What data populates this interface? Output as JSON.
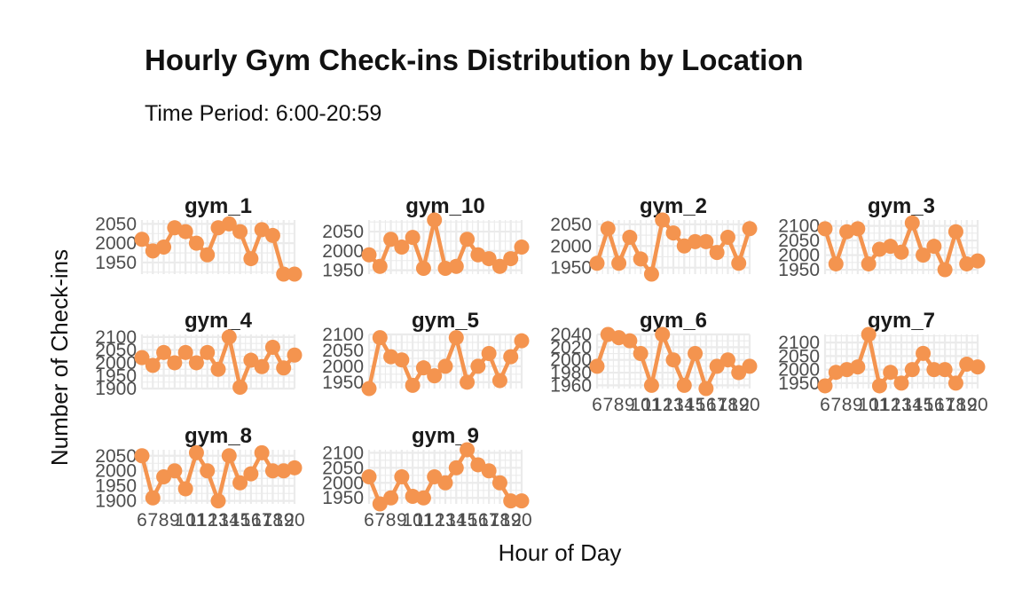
{
  "chart_data": {
    "type": "line",
    "title": "Hourly Gym Check-ins Distribution by Location",
    "subtitle": "Time Period: 6:00-20:59",
    "xlabel": "Hour of Day",
    "ylabel": "Number of Check-ins",
    "x": [
      6,
      7,
      8,
      9,
      10,
      11,
      12,
      13,
      14,
      15,
      16,
      17,
      18,
      19,
      20
    ],
    "xlim": [
      6,
      20
    ],
    "x_tick_labels": [
      "6",
      "7",
      "8",
      "9",
      "10",
      "11",
      "12",
      "13",
      "14",
      "15",
      "16",
      "17",
      "18",
      "19",
      "20"
    ],
    "line_color": "#F4944F",
    "grid": true,
    "layout": "facet grid, 4 columns, 3 rows",
    "panels": [
      {
        "label": "gym_1",
        "ylim": [
          1920,
          2060
        ],
        "yticks": [
          1950,
          2000,
          2050
        ],
        "values": [
          2010,
          1980,
          1990,
          2040,
          2030,
          2000,
          1970,
          2040,
          2050,
          2030,
          1960,
          2035,
          2020,
          1920,
          1920
        ]
      },
      {
        "label": "gym_10",
        "ylim": [
          1940,
          2080
        ],
        "yticks": [
          1950,
          2000,
          2050
        ],
        "values": [
          1990,
          1960,
          2030,
          2010,
          2035,
          1955,
          2080,
          1955,
          1960,
          2030,
          1990,
          1980,
          1960,
          1980,
          2010
        ]
      },
      {
        "label": "gym_2",
        "ylim": [
          1935,
          2060
        ],
        "yticks": [
          1950,
          2000,
          2050
        ],
        "values": [
          1960,
          2040,
          1960,
          2020,
          1970,
          1935,
          2060,
          2030,
          2000,
          2010,
          2010,
          1985,
          2020,
          1960,
          2040
        ]
      },
      {
        "label": "gym_3",
        "ylim": [
          1935,
          2120
        ],
        "yticks": [
          1950,
          2000,
          2050,
          2100
        ],
        "values": [
          2090,
          1970,
          2080,
          2090,
          1970,
          2020,
          2030,
          2010,
          2110,
          2000,
          2030,
          1950,
          2080,
          1970,
          1980
        ]
      },
      {
        "label": "gym_4",
        "ylim": [
          1900,
          2110
        ],
        "yticks": [
          1900,
          1950,
          2000,
          2050,
          2100
        ],
        "values": [
          2020,
          1990,
          2040,
          2000,
          2040,
          2000,
          2040,
          1975,
          2100,
          1905,
          2010,
          1985,
          2060,
          1980,
          2030
        ]
      },
      {
        "label": "gym_5",
        "ylim": [
          1930,
          2100
        ],
        "yticks": [
          1950,
          2000,
          2050,
          2100
        ],
        "values": [
          1930,
          2090,
          2030,
          2020,
          1940,
          1995,
          1970,
          2000,
          2090,
          1950,
          2000,
          2040,
          1955,
          2030,
          2080
        ]
      },
      {
        "label": "gym_6",
        "ylim": [
          1955,
          2040
        ],
        "yticks": [
          1960,
          1980,
          2000,
          2020,
          2040
        ],
        "values": [
          1990,
          2040,
          2035,
          2030,
          2010,
          1960,
          2040,
          2000,
          1960,
          2010,
          1955,
          1990,
          2000,
          1980,
          1990
        ]
      },
      {
        "label": "gym_7",
        "ylim": [
          1930,
          2130
        ],
        "yticks": [
          1950,
          2000,
          2050,
          2100
        ],
        "values": [
          1940,
          1990,
          2000,
          2010,
          2130,
          1940,
          1990,
          1950,
          2000,
          2060,
          2000,
          2000,
          1950,
          2020,
          2010
        ]
      },
      {
        "label": "gym_8",
        "ylim": [
          1890,
          2070
        ],
        "yticks": [
          1900,
          1950,
          2000,
          2050
        ],
        "values": [
          2050,
          1910,
          1980,
          2000,
          1940,
          2060,
          2000,
          1900,
          2050,
          1960,
          1990,
          2060,
          2000,
          2000,
          2010
        ]
      },
      {
        "label": "gym_9",
        "ylim": [
          1930,
          2110
        ],
        "yticks": [
          1950,
          2000,
          2050,
          2100
        ],
        "values": [
          2020,
          1930,
          1950,
          2020,
          1955,
          1950,
          2020,
          2000,
          2050,
          2110,
          2060,
          2040,
          2000,
          1940,
          1940
        ]
      }
    ]
  }
}
